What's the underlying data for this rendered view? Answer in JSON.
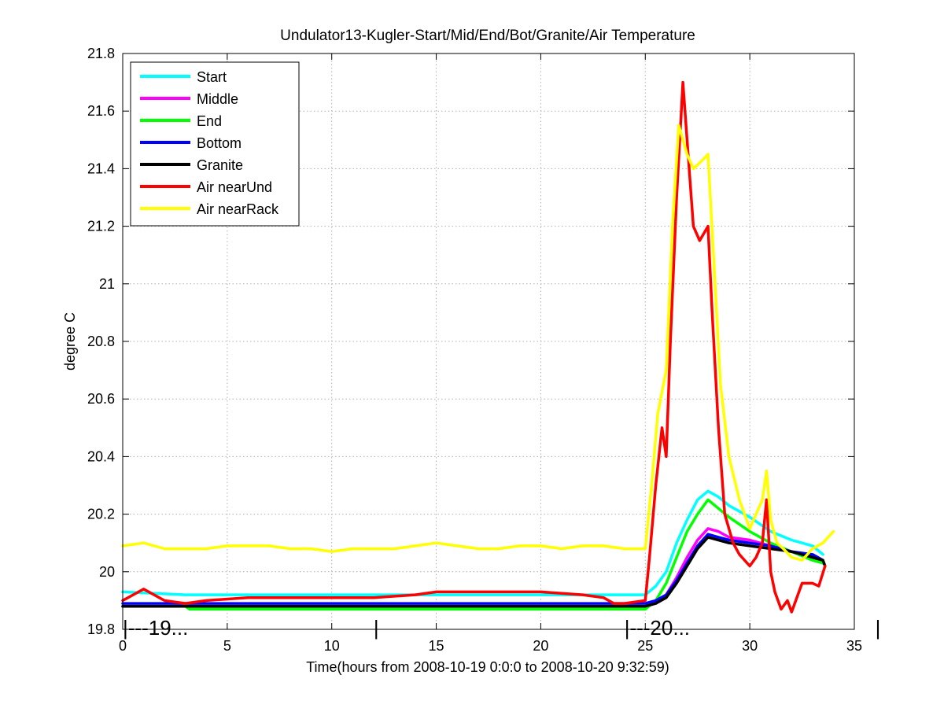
{
  "chart_data": {
    "type": "line",
    "title": "Undulator13-Kugler-Start/Mid/End/Bot/Granite/Air Temperature",
    "xlabel": "Time(hours from 2008-10-19 0:0:0 to 2008-10-20 9:32:59)",
    "ylabel": "degree C",
    "xlim": [
      0,
      35
    ],
    "ylim": [
      19.8,
      21.8
    ],
    "xticks": [
      0,
      5,
      10,
      15,
      20,
      25,
      30,
      35
    ],
    "yticks": [
      19.8,
      20,
      20.2,
      20.4,
      20.6,
      20.8,
      21,
      21.2,
      21.4,
      21.6,
      21.8
    ],
    "grid": true,
    "legend_position": "top-left",
    "annotations": [
      {
        "text": "|---19...",
        "x": 0,
        "y": 19.8
      },
      {
        "text": "|",
        "x": 12,
        "y": 19.8
      },
      {
        "text": "|---20...",
        "x": 24,
        "y": 19.8
      },
      {
        "text": "|",
        "x": 36,
        "y": 19.8
      }
    ],
    "series": [
      {
        "name": "Start",
        "color": "#00ffff",
        "x": [
          0,
          3,
          6,
          10,
          15,
          20,
          24,
          25,
          25.5,
          26,
          26.5,
          27,
          27.5,
          28,
          28.5,
          29,
          30,
          31,
          32,
          33,
          33.5
        ],
        "y": [
          19.93,
          19.92,
          19.92,
          19.92,
          19.92,
          19.92,
          19.92,
          19.92,
          19.95,
          20.0,
          20.1,
          20.18,
          20.25,
          20.28,
          20.26,
          20.23,
          20.19,
          20.14,
          20.11,
          20.09,
          20.06
        ]
      },
      {
        "name": "Middle",
        "color": "#ff00ff",
        "x": [
          0,
          3,
          6,
          10,
          15,
          20,
          24,
          25,
          25.5,
          26,
          26.5,
          27,
          27.5,
          28,
          28.5,
          29,
          30,
          31,
          32,
          33,
          33.5
        ],
        "y": [
          19.88,
          19.88,
          19.88,
          19.88,
          19.88,
          19.88,
          19.88,
          19.88,
          19.89,
          19.92,
          19.98,
          20.05,
          20.11,
          20.15,
          20.14,
          20.12,
          20.11,
          20.09,
          20.07,
          20.05,
          20.03
        ]
      },
      {
        "name": "End",
        "color": "#00ff00",
        "x": [
          0,
          3,
          3.2,
          6,
          10,
          15,
          20,
          24,
          25,
          25.5,
          26,
          26.5,
          27,
          27.5,
          28,
          28.5,
          29,
          30,
          31,
          32,
          33,
          33.5
        ],
        "y": [
          19.88,
          19.88,
          19.87,
          19.87,
          19.87,
          19.87,
          19.87,
          19.87,
          19.87,
          19.9,
          19.96,
          20.05,
          20.14,
          20.2,
          20.25,
          20.22,
          20.19,
          20.14,
          20.1,
          20.07,
          20.04,
          20.03
        ]
      },
      {
        "name": "Bottom",
        "color": "#0000ff",
        "x": [
          0,
          3,
          6,
          10,
          15,
          20,
          24,
          25,
          25.5,
          26,
          26.5,
          27,
          27.5,
          28,
          28.5,
          29,
          30,
          31,
          32,
          33,
          33.5
        ],
        "y": [
          19.89,
          19.89,
          19.89,
          19.89,
          19.89,
          19.89,
          19.89,
          19.89,
          19.9,
          19.92,
          19.97,
          20.03,
          20.09,
          20.13,
          20.12,
          20.11,
          20.1,
          20.09,
          20.07,
          20.06,
          20.04
        ]
      },
      {
        "name": "Granite",
        "color": "#000000",
        "x": [
          0,
          3,
          6,
          10,
          15,
          20,
          24,
          25,
          25.5,
          26,
          26.5,
          27,
          27.5,
          28,
          28.5,
          29,
          30,
          31,
          32,
          33,
          33.5,
          33.6
        ],
        "y": [
          19.88,
          19.88,
          19.88,
          19.88,
          19.88,
          19.88,
          19.88,
          19.88,
          19.89,
          19.91,
          19.96,
          20.02,
          20.08,
          20.12,
          20.11,
          20.1,
          20.09,
          20.08,
          20.07,
          20.05,
          20.04,
          20.02
        ]
      },
      {
        "name": "Air nearUnd",
        "color": "#ff0000",
        "x": [
          0,
          0.5,
          1,
          1.5,
          2,
          3,
          4,
          6,
          8,
          10,
          12,
          14,
          15,
          16,
          18,
          20,
          22,
          23,
          23.5,
          24,
          25,
          25.2,
          25.5,
          25.8,
          26,
          26.2,
          26.5,
          26.8,
          27,
          27.3,
          27.6,
          28,
          28.2,
          28.5,
          28.8,
          29.2,
          29.5,
          30,
          30.3,
          30.6,
          30.8,
          31,
          31.2,
          31.5,
          31.8,
          32,
          32.5,
          33,
          33.3,
          33.6
        ],
        "y": [
          19.9,
          19.92,
          19.94,
          19.92,
          19.9,
          19.89,
          19.9,
          19.91,
          19.91,
          19.91,
          19.91,
          19.92,
          19.93,
          19.93,
          19.93,
          19.93,
          19.92,
          19.91,
          19.89,
          19.89,
          19.9,
          20.05,
          20.3,
          20.5,
          20.4,
          20.8,
          21.3,
          21.7,
          21.5,
          21.2,
          21.15,
          21.2,
          20.9,
          20.5,
          20.2,
          20.1,
          20.06,
          20.02,
          20.05,
          20.1,
          20.25,
          20.0,
          19.93,
          19.87,
          19.9,
          19.86,
          19.96,
          19.96,
          19.95,
          20.02
        ]
      },
      {
        "name": "Air nearRack",
        "color": "#ffff00",
        "x": [
          0,
          1,
          2,
          3,
          4,
          5,
          6,
          7,
          8,
          9,
          10,
          11,
          12,
          13,
          14,
          15,
          16,
          17,
          18,
          19,
          20,
          21,
          22,
          23,
          24,
          25,
          25.3,
          25.6,
          26,
          26.3,
          26.6,
          27,
          27.3,
          27.6,
          28,
          28.3,
          28.6,
          29,
          29.5,
          30,
          30.3,
          30.6,
          30.8,
          31,
          31.3,
          31.6,
          32,
          32.5,
          33,
          33.5,
          34
        ],
        "y": [
          20.09,
          20.1,
          20.08,
          20.08,
          20.08,
          20.09,
          20.09,
          20.09,
          20.08,
          20.08,
          20.07,
          20.08,
          20.08,
          20.08,
          20.09,
          20.1,
          20.09,
          20.08,
          20.08,
          20.09,
          20.09,
          20.08,
          20.09,
          20.09,
          20.08,
          20.08,
          20.3,
          20.55,
          20.7,
          21.2,
          21.55,
          21.45,
          21.4,
          21.42,
          21.45,
          21.05,
          20.65,
          20.4,
          20.25,
          20.15,
          20.2,
          20.25,
          20.35,
          20.18,
          20.1,
          20.08,
          20.05,
          20.04,
          20.08,
          20.1,
          20.14
        ]
      }
    ]
  }
}
